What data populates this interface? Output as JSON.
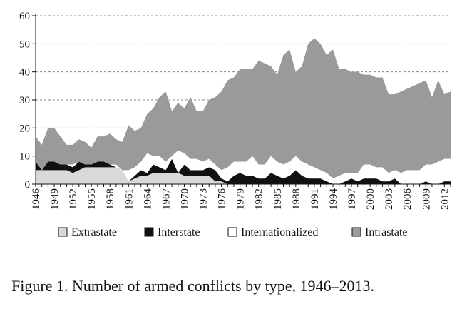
{
  "chart_data": {
    "type": "area",
    "stacked": true,
    "x": [
      1946,
      1947,
      1948,
      1949,
      1950,
      1951,
      1952,
      1953,
      1954,
      1955,
      1956,
      1957,
      1958,
      1959,
      1960,
      1961,
      1962,
      1963,
      1964,
      1965,
      1966,
      1967,
      1968,
      1969,
      1970,
      1971,
      1972,
      1973,
      1974,
      1975,
      1976,
      1977,
      1978,
      1979,
      1980,
      1981,
      1982,
      1983,
      1984,
      1985,
      1986,
      1987,
      1988,
      1989,
      1990,
      1991,
      1992,
      1993,
      1994,
      1995,
      1996,
      1997,
      1998,
      1999,
      2000,
      2001,
      2002,
      2003,
      2004,
      2005,
      2006,
      2007,
      2008,
      2009,
      2010,
      2011,
      2012,
      2013
    ],
    "xtick_labels": [
      "1946",
      "1949",
      "1952",
      "1955",
      "1958",
      "1961",
      "1964",
      "1967",
      "1970",
      "1973",
      "1976",
      "1979",
      "1982",
      "1985",
      "1988",
      "1991",
      "1994",
      "1997",
      "2000",
      "2003",
      "2006",
      "2009",
      "2012"
    ],
    "ylim": [
      0,
      60
    ],
    "yticks": [
      0,
      10,
      20,
      30,
      40,
      50,
      60
    ],
    "ytick_labels": [
      "0",
      "10",
      "20",
      "30",
      "40",
      "50",
      "60"
    ],
    "grid": "horizontal-dashed",
    "legend_position": "bottom",
    "series": [
      {
        "name": "Extrastate",
        "color": "#d9d9d9",
        "values": [
          5,
          5,
          5,
          5,
          5,
          5,
          4,
          5,
          6,
          6,
          6,
          6,
          6,
          6,
          5,
          1,
          2,
          3,
          3,
          4,
          4,
          4,
          4,
          4,
          3,
          3,
          3,
          3,
          3,
          1,
          1,
          0,
          0,
          0,
          0,
          0,
          0,
          0,
          0,
          0,
          0,
          0,
          0,
          0,
          0,
          0,
          0,
          0,
          0,
          0,
          0,
          0,
          0,
          0,
          0,
          0,
          0,
          0,
          0,
          0,
          0,
          0,
          0,
          0,
          0,
          0,
          0,
          0
        ]
      },
      {
        "name": "Interstate",
        "color": "#111111",
        "values": [
          3,
          0,
          3,
          3,
          2,
          2,
          2,
          3,
          1,
          1,
          2,
          2,
          1,
          0,
          0,
          0,
          1,
          2,
          1,
          3,
          2,
          1,
          5,
          0,
          4,
          2,
          2,
          2,
          3,
          4,
          1,
          1,
          3,
          4,
          3,
          3,
          2,
          2,
          4,
          3,
          2,
          3,
          5,
          3,
          2,
          2,
          2,
          1,
          0,
          0,
          1,
          2,
          1,
          2,
          2,
          2,
          1,
          1,
          2,
          0,
          0,
          0,
          0,
          1,
          0,
          0,
          1,
          1
        ]
      },
      {
        "name": "Internationalized",
        "color": "#ffffff",
        "values": [
          0,
          0,
          0,
          0,
          0,
          0,
          1,
          0,
          0,
          0,
          0,
          0,
          0,
          1,
          0,
          4,
          3,
          3,
          7,
          3,
          4,
          3,
          1,
          8,
          4,
          4,
          4,
          3,
          3,
          2,
          3,
          5,
          5,
          4,
          5,
          7,
          5,
          5,
          6,
          5,
          5,
          5,
          5,
          5,
          5,
          4,
          3,
          3,
          2,
          3,
          3,
          2,
          3,
          5,
          5,
          4,
          5,
          3,
          3,
          4,
          5,
          5,
          5,
          6,
          7,
          8,
          8,
          8
        ]
      },
      {
        "name": "Intrastate",
        "color": "#9a9a9a",
        "values": [
          9,
          9,
          12,
          12,
          10,
          7,
          7,
          8,
          8,
          6,
          9,
          9,
          11,
          9,
          10,
          16,
          13,
          12,
          14,
          17,
          21,
          25,
          16,
          17,
          16,
          22,
          17,
          18,
          21,
          24,
          28,
          31,
          30,
          33,
          33,
          31,
          37,
          36,
          32,
          31,
          39,
          40,
          30,
          34,
          43,
          46,
          45,
          42,
          46,
          38,
          37,
          36,
          36,
          32,
          32,
          32,
          32,
          28,
          27,
          29,
          29,
          30,
          31,
          30,
          24,
          29,
          23,
          24
        ]
      }
    ],
    "title": "",
    "xlabel": "",
    "ylabel": ""
  },
  "caption": "Figure 1. Number of armed conflicts by type, 1946–2013."
}
